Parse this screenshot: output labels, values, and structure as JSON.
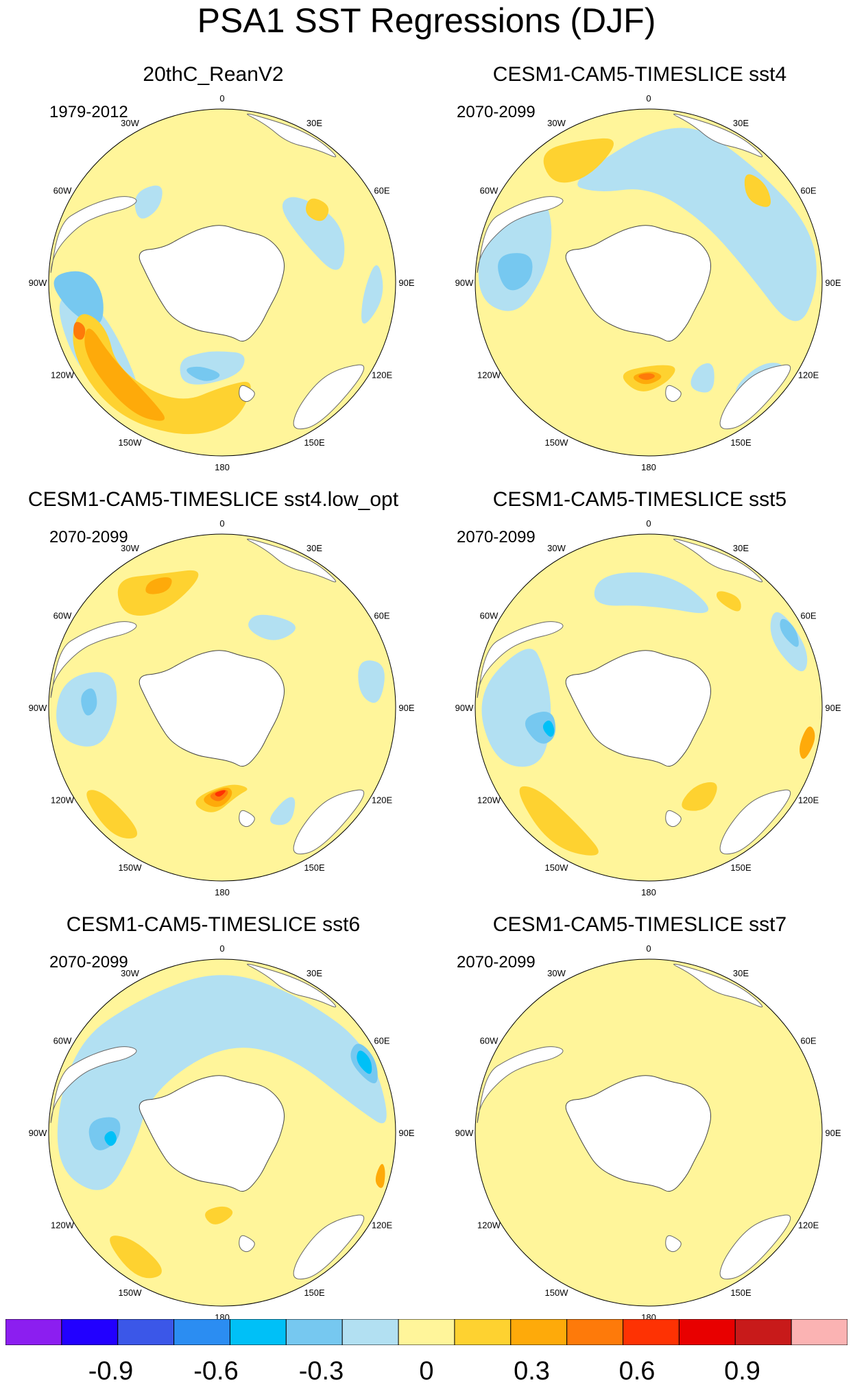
{
  "title": "PSA1 SST Regressions (DJF)",
  "longitude_labels": [
    "0",
    "30E",
    "60E",
    "90E",
    "120E",
    "150E",
    "180",
    "150W",
    "120W",
    "90W",
    "60W",
    "30W"
  ],
  "panels": [
    {
      "title": "20thC_ReanV2",
      "period": "1979-2012",
      "pattern": "reanalysis"
    },
    {
      "title": "CESM1-CAM5-TIMESLICE sst4",
      "period": "2070-2099",
      "pattern": "sst4"
    },
    {
      "title": "CESM1-CAM5-TIMESLICE sst4.low_opt",
      "period": "2070-2099",
      "pattern": "sst4low"
    },
    {
      "title": "CESM1-CAM5-TIMESLICE sst5",
      "period": "2070-2099",
      "pattern": "sst5"
    },
    {
      "title": "CESM1-CAM5-TIMESLICE sst6",
      "period": "2070-2099",
      "pattern": "sst6"
    },
    {
      "title": "CESM1-CAM5-TIMESLICE sst7",
      "period": "2070-2099",
      "pattern": "sst7"
    }
  ],
  "colorbar": {
    "colors": [
      "#8c1ef0",
      "#2200ff",
      "#3b57e8",
      "#2b8df2",
      "#00c0f7",
      "#76c8f0",
      "#b2e0f2",
      "#fff59a",
      "#fed230",
      "#feaa0a",
      "#fe7a0a",
      "#fe3203",
      "#e80000",
      "#c81a1a",
      "#fbb3b3"
    ],
    "tick_labels": [
      "-0.9",
      "-0.6",
      "-0.3",
      "0",
      "0.3",
      "0.6",
      "0.9"
    ],
    "tick_values": [
      -0.9,
      -0.6,
      -0.3,
      0,
      0.3,
      0.6,
      0.9
    ],
    "min": -1.2,
    "max": 1.2,
    "step": 0.15
  }
}
